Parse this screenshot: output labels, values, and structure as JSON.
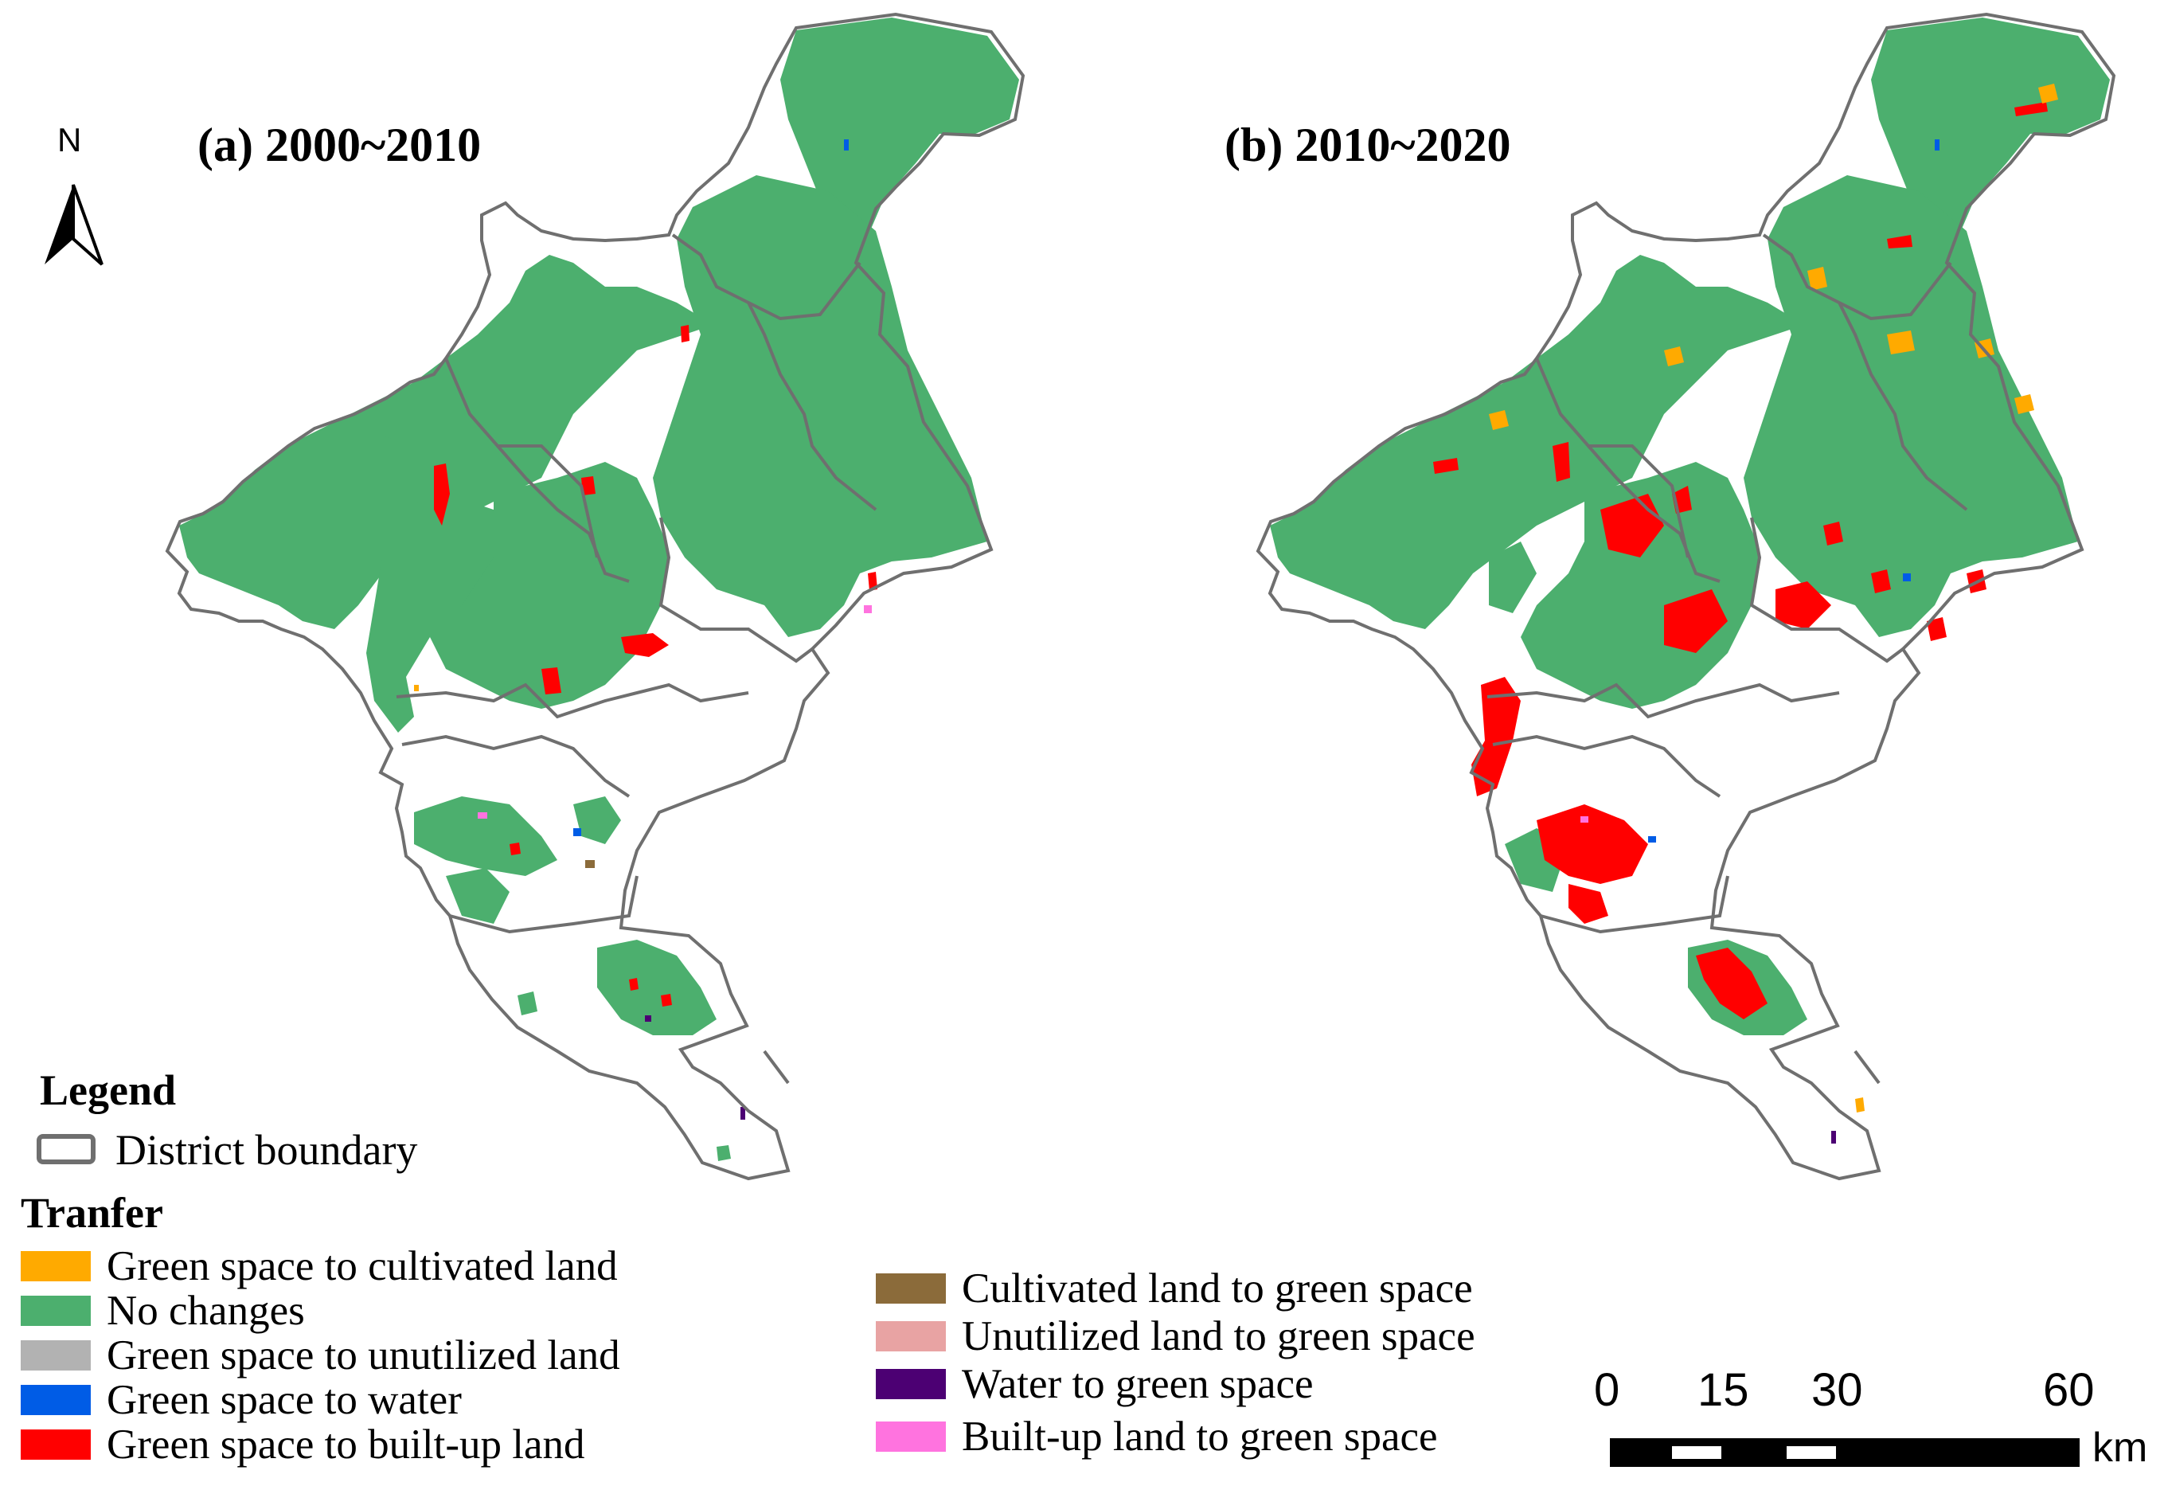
{
  "panels": [
    {
      "title": "(a) 2000~2010"
    },
    {
      "title": "(b) 2010~2020"
    }
  ],
  "north_arrow": {
    "label": "N"
  },
  "legend": {
    "title": "Legend",
    "district_boundary": {
      "label": "District boundary",
      "color": "#6f6f6f"
    },
    "transfer_title": "Tranfer",
    "items_left": [
      {
        "label": "Green space to cultivated land",
        "color": "#ffaa00"
      },
      {
        "label": "No changes",
        "color": "#4caf6e"
      },
      {
        "label": "Green space to unutilized land",
        "color": "#b2b2b2"
      },
      {
        "label": "Green space to water",
        "color": "#005ce6"
      },
      {
        "label": "Green space to built-up land",
        "color": "#ff0000"
      }
    ],
    "items_right": [
      {
        "label": "Cultivated land to green space",
        "color": "#8b6b3a"
      },
      {
        "label": "Unutilized land to green space",
        "color": "#e8a3a3"
      },
      {
        "label": "Water to green space",
        "color": "#4c0073"
      },
      {
        "label": "Built-up land to green space",
        "color": "#ff73df"
      }
    ]
  },
  "scale_bar": {
    "ticks": [
      "0",
      "15",
      "30",
      "60"
    ],
    "unit": "km"
  }
}
